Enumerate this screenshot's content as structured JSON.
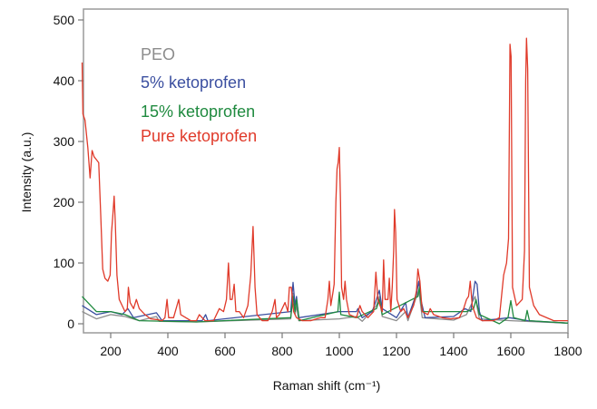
{
  "chart_data": {
    "type": "line",
    "title": "",
    "xlabel": "Raman shift (cm⁻¹)",
    "ylabel": "Intensity (a.u.)",
    "xlim": [
      100,
      1800
    ],
    "ylim": [
      -15,
      520
    ],
    "xticks": [
      200,
      400,
      600,
      800,
      1000,
      1200,
      1400,
      1600,
      1800
    ],
    "yticks": [
      0,
      100,
      200,
      300,
      400,
      500
    ],
    "grid": false,
    "legend_placement": "top-left",
    "series": [
      {
        "name": "PEO",
        "color": "#8c8c8c",
        "points": [
          [
            100,
            20
          ],
          [
            150,
            8
          ],
          [
            200,
            15
          ],
          [
            250,
            12
          ],
          [
            300,
            5
          ],
          [
            360,
            12
          ],
          [
            370,
            4
          ],
          [
            500,
            3
          ],
          [
            830,
            8
          ],
          [
            838,
            50
          ],
          [
            845,
            15
          ],
          [
            850,
            30
          ],
          [
            858,
            5
          ],
          [
            1000,
            8
          ],
          [
            1060,
            12
          ],
          [
            1080,
            4
          ],
          [
            1130,
            30
          ],
          [
            1140,
            45
          ],
          [
            1150,
            12
          ],
          [
            1200,
            5
          ],
          [
            1232,
            20
          ],
          [
            1240,
            5
          ],
          [
            1278,
            55
          ],
          [
            1290,
            10
          ],
          [
            1400,
            6
          ],
          [
            1445,
            15
          ],
          [
            1475,
            45
          ],
          [
            1490,
            8
          ],
          [
            1600,
            5
          ],
          [
            1800,
            1
          ]
        ]
      },
      {
        "name": "5% ketoprofen",
        "color": "#3b4fa0",
        "points": [
          [
            100,
            30
          ],
          [
            150,
            15
          ],
          [
            200,
            20
          ],
          [
            240,
            15
          ],
          [
            260,
            25
          ],
          [
            280,
            10
          ],
          [
            360,
            18
          ],
          [
            380,
            5
          ],
          [
            520,
            5
          ],
          [
            532,
            15
          ],
          [
            540,
            5
          ],
          [
            830,
            20
          ],
          [
            838,
            68
          ],
          [
            845,
            30
          ],
          [
            850,
            45
          ],
          [
            858,
            10
          ],
          [
            1000,
            20
          ],
          [
            1060,
            20
          ],
          [
            1065,
            25
          ],
          [
            1080,
            10
          ],
          [
            1115,
            20
          ],
          [
            1130,
            40
          ],
          [
            1140,
            55
          ],
          [
            1150,
            25
          ],
          [
            1200,
            10
          ],
          [
            1232,
            35
          ],
          [
            1240,
            10
          ],
          [
            1270,
            50
          ],
          [
            1278,
            70
          ],
          [
            1285,
            40
          ],
          [
            1300,
            10
          ],
          [
            1400,
            12
          ],
          [
            1440,
            25
          ],
          [
            1460,
            20
          ],
          [
            1475,
            70
          ],
          [
            1482,
            65
          ],
          [
            1490,
            20
          ],
          [
            1500,
            5
          ],
          [
            1595,
            10
          ],
          [
            1660,
            5
          ],
          [
            1800,
            1
          ]
        ]
      },
      {
        "name": "15% ketoprofen",
        "color": "#1f8a3f",
        "points": [
          [
            100,
            45
          ],
          [
            150,
            20
          ],
          [
            200,
            20
          ],
          [
            250,
            15
          ],
          [
            300,
            5
          ],
          [
            500,
            3
          ],
          [
            830,
            10
          ],
          [
            838,
            45
          ],
          [
            845,
            20
          ],
          [
            850,
            40
          ],
          [
            860,
            5
          ],
          [
            995,
            20
          ],
          [
            1000,
            52
          ],
          [
            1005,
            15
          ],
          [
            1060,
            10
          ],
          [
            1130,
            25
          ],
          [
            1140,
            40
          ],
          [
            1150,
            15
          ],
          [
            1275,
            45
          ],
          [
            1280,
            60
          ],
          [
            1290,
            20
          ],
          [
            1445,
            20
          ],
          [
            1470,
            25
          ],
          [
            1478,
            40
          ],
          [
            1490,
            15
          ],
          [
            1560,
            0
          ],
          [
            1590,
            10
          ],
          [
            1600,
            38
          ],
          [
            1610,
            10
          ],
          [
            1650,
            5
          ],
          [
            1657,
            22
          ],
          [
            1665,
            5
          ],
          [
            1800,
            1
          ]
        ]
      },
      {
        "name": "Pure ketoprofen",
        "color": "#e03a2a",
        "points": [
          [
            100,
            430
          ],
          [
            103,
            345
          ],
          [
            110,
            335
          ],
          [
            120,
            290
          ],
          [
            128,
            240
          ],
          [
            135,
            285
          ],
          [
            142,
            275
          ],
          [
            150,
            270
          ],
          [
            158,
            265
          ],
          [
            165,
            180
          ],
          [
            172,
            90
          ],
          [
            180,
            75
          ],
          [
            190,
            70
          ],
          [
            198,
            80
          ],
          [
            203,
            150
          ],
          [
            207,
            175
          ],
          [
            212,
            210
          ],
          [
            216,
            170
          ],
          [
            222,
            80
          ],
          [
            230,
            40
          ],
          [
            240,
            30
          ],
          [
            250,
            20
          ],
          [
            258,
            25
          ],
          [
            262,
            60
          ],
          [
            268,
            35
          ],
          [
            280,
            25
          ],
          [
            290,
            40
          ],
          [
            300,
            25
          ],
          [
            320,
            15
          ],
          [
            340,
            8
          ],
          [
            360,
            7
          ],
          [
            380,
            5
          ],
          [
            390,
            10
          ],
          [
            397,
            40
          ],
          [
            403,
            10
          ],
          [
            420,
            10
          ],
          [
            438,
            40
          ],
          [
            445,
            15
          ],
          [
            480,
            5
          ],
          [
            500,
            5
          ],
          [
            510,
            15
          ],
          [
            530,
            5
          ],
          [
            560,
            5
          ],
          [
            580,
            25
          ],
          [
            595,
            20
          ],
          [
            605,
            40
          ],
          [
            612,
            100
          ],
          [
            618,
            40
          ],
          [
            625,
            40
          ],
          [
            632,
            65
          ],
          [
            638,
            20
          ],
          [
            650,
            20
          ],
          [
            665,
            10
          ],
          [
            680,
            30
          ],
          [
            690,
            80
          ],
          [
            698,
            160
          ],
          [
            705,
            60
          ],
          [
            712,
            15
          ],
          [
            730,
            5
          ],
          [
            750,
            5
          ],
          [
            765,
            20
          ],
          [
            775,
            40
          ],
          [
            780,
            10
          ],
          [
            790,
            15
          ],
          [
            800,
            25
          ],
          [
            810,
            35
          ],
          [
            820,
            20
          ],
          [
            825,
            60
          ],
          [
            832,
            60
          ],
          [
            840,
            20
          ],
          [
            850,
            10
          ],
          [
            870,
            5
          ],
          [
            900,
            5
          ],
          [
            920,
            8
          ],
          [
            935,
            10
          ],
          [
            950,
            10
          ],
          [
            960,
            40
          ],
          [
            965,
            70
          ],
          [
            970,
            30
          ],
          [
            977,
            50
          ],
          [
            982,
            65
          ],
          [
            988,
            200
          ],
          [
            992,
            255
          ],
          [
            996,
            265
          ],
          [
            1000,
            290
          ],
          [
            1004,
            200
          ],
          [
            1008,
            60
          ],
          [
            1015,
            40
          ],
          [
            1020,
            70
          ],
          [
            1025,
            40
          ],
          [
            1035,
            15
          ],
          [
            1060,
            10
          ],
          [
            1072,
            30
          ],
          [
            1080,
            20
          ],
          [
            1100,
            10
          ],
          [
            1120,
            20
          ],
          [
            1128,
            85
          ],
          [
            1135,
            40
          ],
          [
            1150,
            20
          ],
          [
            1155,
            105
          ],
          [
            1160,
            40
          ],
          [
            1170,
            40
          ],
          [
            1175,
            75
          ],
          [
            1180,
            20
          ],
          [
            1185,
            60
          ],
          [
            1190,
            120
          ],
          [
            1193,
            188
          ],
          [
            1197,
            150
          ],
          [
            1202,
            40
          ],
          [
            1215,
            20
          ],
          [
            1225,
            25
          ],
          [
            1240,
            10
          ],
          [
            1260,
            30
          ],
          [
            1270,
            55
          ],
          [
            1275,
            90
          ],
          [
            1282,
            70
          ],
          [
            1290,
            20
          ],
          [
            1310,
            15
          ],
          [
            1318,
            25
          ],
          [
            1330,
            15
          ],
          [
            1360,
            10
          ],
          [
            1390,
            8
          ],
          [
            1420,
            10
          ],
          [
            1435,
            25
          ],
          [
            1445,
            40
          ],
          [
            1452,
            45
          ],
          [
            1458,
            70
          ],
          [
            1465,
            30
          ],
          [
            1480,
            10
          ],
          [
            1500,
            5
          ],
          [
            1540,
            5
          ],
          [
            1560,
            10
          ],
          [
            1575,
            80
          ],
          [
            1585,
            100
          ],
          [
            1592,
            140
          ],
          [
            1597,
            460
          ],
          [
            1601,
            440
          ],
          [
            1606,
            60
          ],
          [
            1620,
            30
          ],
          [
            1640,
            40
          ],
          [
            1648,
            120
          ],
          [
            1652,
            400
          ],
          [
            1655,
            470
          ],
          [
            1659,
            420
          ],
          [
            1665,
            60
          ],
          [
            1680,
            30
          ],
          [
            1700,
            15
          ],
          [
            1750,
            5
          ],
          [
            1800,
            5
          ]
        ]
      }
    ]
  }
}
